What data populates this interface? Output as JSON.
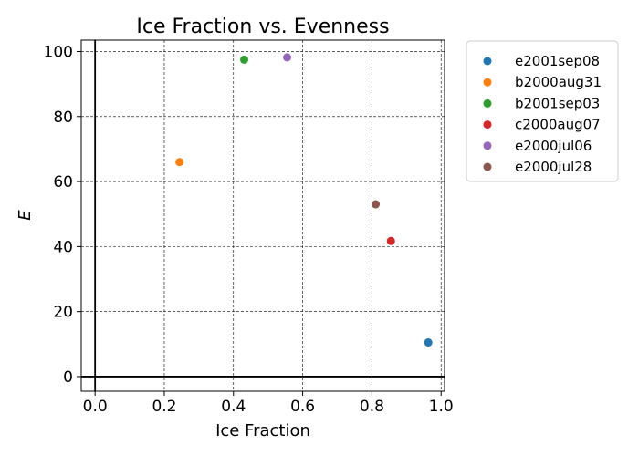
{
  "chart_data": {
    "type": "scatter",
    "title": "Ice Fraction vs. Evenness",
    "xlabel": "Ice Fraction",
    "ylabel": "E",
    "xlim": [
      -0.04,
      1.01
    ],
    "ylim": [
      -4.5,
      103.5
    ],
    "xticks": [
      0.0,
      0.2,
      0.4,
      0.6,
      0.8,
      1.0
    ],
    "xtick_labels": [
      "0.0",
      "0.2",
      "0.4",
      "0.6",
      "0.8",
      "1.0"
    ],
    "yticks": [
      0,
      20,
      40,
      60,
      80,
      100
    ],
    "ytick_labels": [
      "0",
      "20",
      "40",
      "60",
      "80",
      "100"
    ],
    "grid": true,
    "legend_position": "outside-right",
    "series": [
      {
        "name": "e2001sep08",
        "color": "#1f77b4",
        "points": [
          {
            "x": 0.963,
            "y": 10.5
          }
        ]
      },
      {
        "name": "b2000aug31",
        "color": "#ff7f0e",
        "points": [
          {
            "x": 0.244,
            "y": 66.0
          }
        ]
      },
      {
        "name": "b2001sep03",
        "color": "#2ca02c",
        "points": [
          {
            "x": 0.431,
            "y": 97.5
          }
        ]
      },
      {
        "name": "c2000aug07",
        "color": "#d62728",
        "points": [
          {
            "x": 0.855,
            "y": 41.7
          }
        ]
      },
      {
        "name": "e2000jul06",
        "color": "#9467bd",
        "points": [
          {
            "x": 0.555,
            "y": 98.2
          }
        ]
      },
      {
        "name": "e2000jul28",
        "color": "#8c564b",
        "points": [
          {
            "x": 0.811,
            "y": 53.0
          }
        ]
      }
    ]
  }
}
